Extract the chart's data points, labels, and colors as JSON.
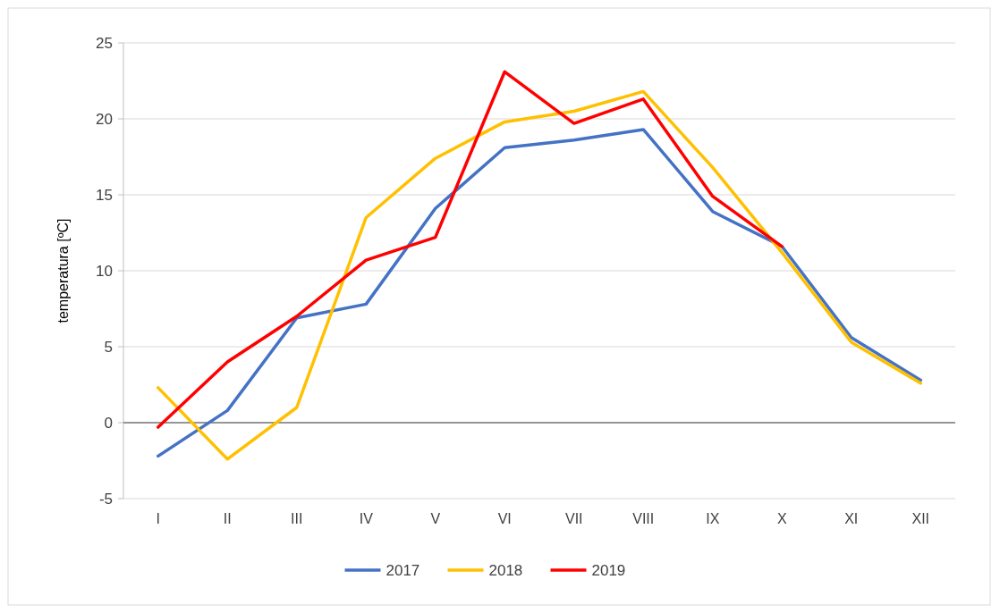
{
  "chart_data": {
    "type": "line",
    "ylabel": "temperatura [ºC]",
    "categories": [
      "I",
      "II",
      "III",
      "IV",
      "V",
      "VI",
      "VII",
      "VIII",
      "IX",
      "X",
      "XI",
      "XII"
    ],
    "series": [
      {
        "name": "2017",
        "color": "#4472c4",
        "values": [
          -2.2,
          0.8,
          6.9,
          7.8,
          14.1,
          18.1,
          18.6,
          19.3,
          13.9,
          11.6,
          5.6,
          2.8
        ]
      },
      {
        "name": "2018",
        "color": "#ffc000",
        "values": [
          2.3,
          -2.4,
          1.0,
          13.5,
          17.4,
          19.8,
          20.5,
          21.8,
          16.8,
          11.2,
          5.3,
          2.6
        ]
      },
      {
        "name": "2019",
        "color": "#ff0000",
        "values": [
          -0.3,
          4.0,
          7.0,
          10.7,
          12.2,
          23.1,
          19.7,
          21.3,
          14.9,
          11.6,
          null,
          null
        ]
      }
    ],
    "ylim": [
      -5,
      25
    ],
    "yticks": [
      -5,
      0,
      5,
      10,
      15,
      20,
      25
    ],
    "grid": "y",
    "legend": "bottom",
    "marker": "none",
    "line_style": "solid"
  }
}
